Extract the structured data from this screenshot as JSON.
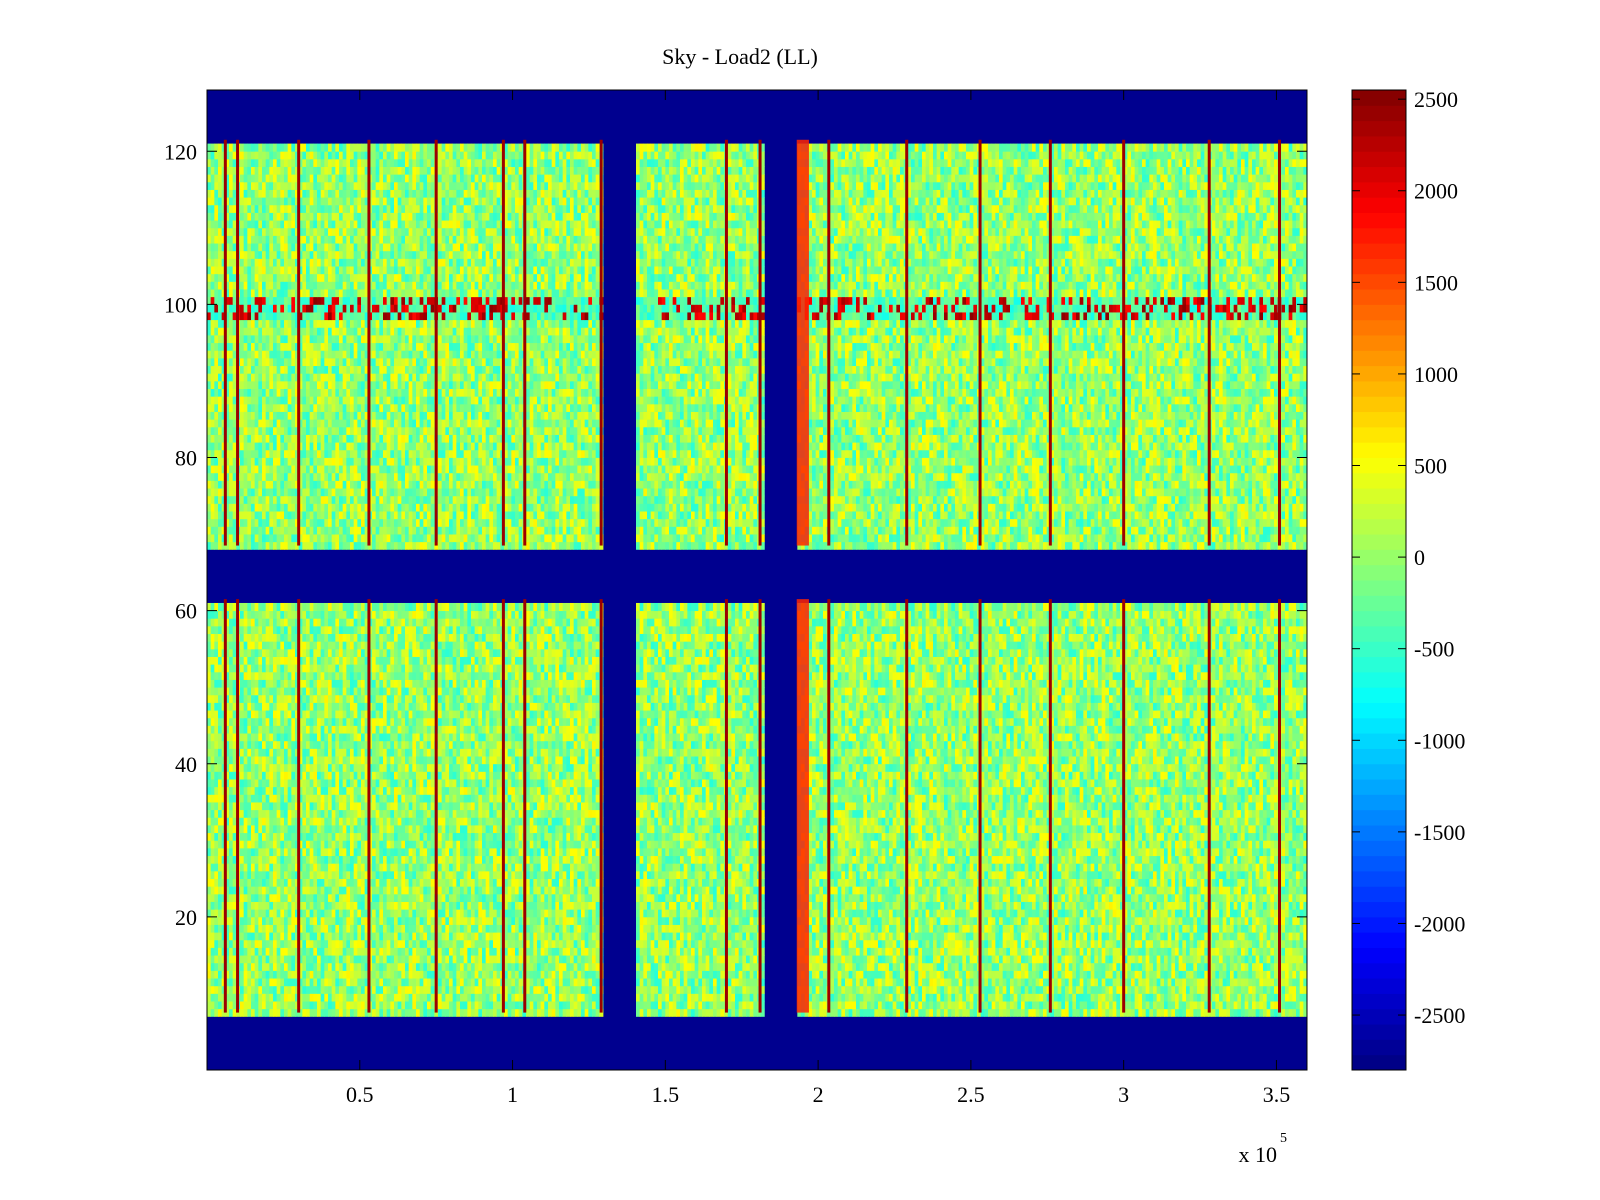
{
  "chart_data": {
    "type": "heatmap",
    "title": "Sky - Load2 (LL)",
    "xlabel": "",
    "ylabel": "",
    "x_exponent_label": "x 10",
    "x_exponent": "5",
    "xlim": [
      0,
      360000
    ],
    "ylim": [
      0,
      128
    ],
    "x_ticks": [
      {
        "value": 50000,
        "label": "0.5"
      },
      {
        "value": 100000,
        "label": "1"
      },
      {
        "value": 150000,
        "label": "1.5"
      },
      {
        "value": 200000,
        "label": "2"
      },
      {
        "value": 250000,
        "label": "2.5"
      },
      {
        "value": 300000,
        "label": "3"
      },
      {
        "value": 350000,
        "label": "3.5"
      }
    ],
    "y_ticks": [
      {
        "value": 20,
        "label": "20"
      },
      {
        "value": 40,
        "label": "40"
      },
      {
        "value": 60,
        "label": "60"
      },
      {
        "value": 80,
        "label": "80"
      },
      {
        "value": 100,
        "label": "100"
      },
      {
        "value": 120,
        "label": "120"
      }
    ],
    "colorbar": {
      "colormap": "jet",
      "range": [
        -2800,
        2550
      ],
      "ticks": [
        {
          "value": 2500,
          "label": "2500"
        },
        {
          "value": 2000,
          "label": "2000"
        },
        {
          "value": 1500,
          "label": "1500"
        },
        {
          "value": 1000,
          "label": "1000"
        },
        {
          "value": 500,
          "label": "500"
        },
        {
          "value": 0,
          "label": "0"
        },
        {
          "value": -500,
          "label": "-500"
        },
        {
          "value": -1000,
          "label": "-1000"
        },
        {
          "value": -1500,
          "label": "-1500"
        },
        {
          "value": -2000,
          "label": "-2000"
        },
        {
          "value": -2500,
          "label": "-2500"
        }
      ]
    },
    "masked_value": -2800,
    "masked_channel_ranges": [
      [
        0,
        7.5
      ],
      [
        61.5,
        68.5
      ],
      [
        121.5,
        128
      ]
    ],
    "masked_time_ranges": [
      [
        130000,
        141000
      ],
      [
        182000,
        193000
      ]
    ],
    "typical_value_range": [
      -600,
      600
    ],
    "bright_vertical_lines_x": [
      6000,
      10000,
      30000,
      53000,
      75000,
      97000,
      104000,
      129000,
      170000,
      181000,
      203500,
      229000,
      253000,
      276000,
      300000,
      328000,
      351000
    ],
    "bright_band_x_range": [
      193000,
      197000
    ],
    "rfi_channel_band": [
      98.5,
      101.5
    ]
  }
}
